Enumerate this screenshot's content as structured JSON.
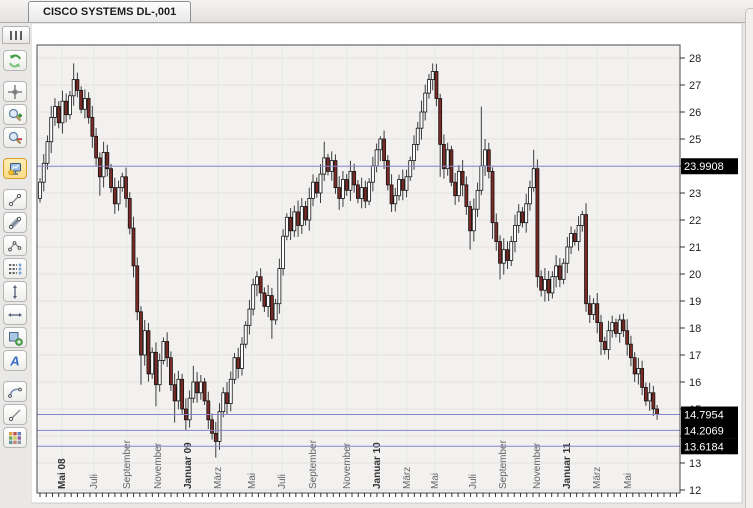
{
  "window": {
    "tab_title": "CISCO SYSTEMS DL-,001"
  },
  "toolbar": {
    "items": [
      "refresh",
      "crosshair",
      "zoom-in",
      "zoom-out",
      "chart-template",
      "trendline",
      "channel",
      "angle",
      "fibonacci-levels",
      "vertical-line",
      "horizontal-line",
      "rectangle-add",
      "text",
      "pitchfork",
      "ray",
      "palette"
    ],
    "selected_item": "chart-template"
  },
  "chart_data": {
    "type": "candlestick",
    "title": "CISCO SYSTEMS DL-,001",
    "ylim": [
      12,
      28
    ],
    "y_ticks": [
      12,
      13,
      14,
      15,
      16,
      17,
      18,
      19,
      20,
      21,
      22,
      23,
      24,
      25,
      26,
      27,
      28
    ],
    "x_labels": [
      {
        "text": "Mai 08",
        "x": 62,
        "bold": true
      },
      {
        "text": "Juli",
        "x": 94,
        "bold": false
      },
      {
        "text": "September",
        "x": 127,
        "bold": false
      },
      {
        "text": "November",
        "x": 158,
        "bold": false
      },
      {
        "text": "Januar 09",
        "x": 188,
        "bold": true
      },
      {
        "text": "März",
        "x": 218,
        "bold": false
      },
      {
        "text": "Mai",
        "x": 252,
        "bold": false
      },
      {
        "text": "Juli",
        "x": 282,
        "bold": false
      },
      {
        "text": "September",
        "x": 313,
        "bold": false
      },
      {
        "text": "November",
        "x": 347,
        "bold": false
      },
      {
        "text": "Januar 10",
        "x": 377,
        "bold": true
      },
      {
        "text": "März",
        "x": 407,
        "bold": false
      },
      {
        "text": "Mai",
        "x": 435,
        "bold": false
      },
      {
        "text": "Juli",
        "x": 473,
        "bold": false
      },
      {
        "text": "September",
        "x": 503,
        "bold": false
      },
      {
        "text": "November",
        "x": 537,
        "bold": false
      },
      {
        "text": "Januar 11",
        "x": 567,
        "bold": true
      },
      {
        "text": "März",
        "x": 597,
        "bold": false
      },
      {
        "text": "Mai",
        "x": 628,
        "bold": false
      }
    ],
    "price_lines": [
      {
        "label": "23.9908",
        "value": 23.9908
      },
      {
        "label": "14.7954",
        "value": 14.7954
      },
      {
        "label": "14.2069",
        "value": 14.2069
      },
      {
        "label": "13.6184",
        "value": 13.6184
      }
    ],
    "first_open": 22.8,
    "closes": [
      23.4,
      24.1,
      24.9,
      25.8,
      26.2,
      25.6,
      26.4,
      25.9,
      26.6,
      27.2,
      26.8,
      26.1,
      26.5,
      25.8,
      25.1,
      24.3,
      23.6,
      24.5,
      23.9,
      23.2,
      22.6,
      23.2,
      23.6,
      22.8,
      21.7,
      20.3,
      18.6,
      17.0,
      17.9,
      16.3,
      17.1,
      15.9,
      16.8,
      17.5,
      16.9,
      15.9,
      15.3,
      16.1,
      15.0,
      14.6,
      15.4,
      16.0,
      15.6,
      16.0,
      15.3,
      14.6,
      14.1,
      13.8,
      14.9,
      15.6,
      15.2,
      16.1,
      16.9,
      16.5,
      17.4,
      18.1,
      18.7,
      19.6,
      19.9,
      19.3,
      18.8,
      19.2,
      18.3,
      18.9,
      20.2,
      21.4,
      22.1,
      21.6,
      22.3,
      21.8,
      22.5,
      22.0,
      22.8,
      23.4,
      23.0,
      23.7,
      24.3,
      23.8,
      24.2,
      23.2,
      22.8,
      23.5,
      23.1,
      23.8,
      23.3,
      22.8,
      23.2,
      22.7,
      23.4,
      24.0,
      24.6,
      25.0,
      24.2,
      23.3,
      22.6,
      22.9,
      23.5,
      23.1,
      23.6,
      24.2,
      24.8,
      25.4,
      26.0,
      26.7,
      27.2,
      27.5,
      26.5,
      24.8,
      23.9,
      24.6,
      23.4,
      22.9,
      23.8,
      23.3,
      22.5,
      21.6,
      22.4,
      23.1,
      24.0,
      24.6,
      23.8,
      21.9,
      21.2,
      20.4,
      20.9,
      20.5,
      21.2,
      21.8,
      22.3,
      21.9,
      22.6,
      23.2,
      23.9,
      19.9,
      19.4,
      19.8,
      19.3,
      19.9,
      20.3,
      19.8,
      20.4,
      21.0,
      21.5,
      21.2,
      21.8,
      22.2,
      18.9,
      18.5,
      18.9,
      18.2,
      17.5,
      17.2,
      17.9,
      18.2,
      17.8,
      18.3,
      17.9,
      17.4,
      16.9,
      16.3,
      16.5,
      15.8,
      15.3,
      15.6,
      15.0,
      14.8
    ],
    "overrides": {
      "9": {
        "h": 27.8
      },
      "16": {
        "l": 22.9
      },
      "27": {
        "l": 15.9
      },
      "31": {
        "l": 15.1
      },
      "36": {
        "l": 14.5
      },
      "39": {
        "l": 14.2
      },
      "41": {
        "h": 16.6
      },
      "47": {
        "l": 13.2
      },
      "58": {
        "h": 20.1
      },
      "62": {
        "l": 17.6
      },
      "76": {
        "h": 24.9
      },
      "91": {
        "h": 25.1
      },
      "94": {
        "l": 22.3
      },
      "105": {
        "h": 27.8
      },
      "107": {
        "l": 23.6
      },
      "115": {
        "l": 20.9
      },
      "118": {
        "h": 26.2
      },
      "119": {
        "h": 25.0
      },
      "121": {
        "l": 21.3
      },
      "123": {
        "l": 19.8
      },
      "132": {
        "h": 24.6
      },
      "133": {
        "l": 19.5
      },
      "136": {
        "l": 19.0
      },
      "145": {
        "h": 22.34
      },
      "146": {
        "l": 18.6
      },
      "150": {
        "l": 17.0
      },
      "155": {
        "h": 18.5
      },
      "159": {
        "l": 16.0
      },
      "165": {
        "l": 14.6
      }
    },
    "colors": {
      "up_body": "#ffffff",
      "down_body": "#7c2a26",
      "body_border": "#141414",
      "wick": "#3c3c3c",
      "price_line": "#8585c9",
      "tag_bg": "#000000",
      "tag_text": "#ffffff",
      "plot_bg": "#f2f1f0",
      "grid": "#e2e1e0",
      "axis_text": "#222222",
      "month_text": "#666666",
      "month_text_bold": "#333333"
    }
  }
}
